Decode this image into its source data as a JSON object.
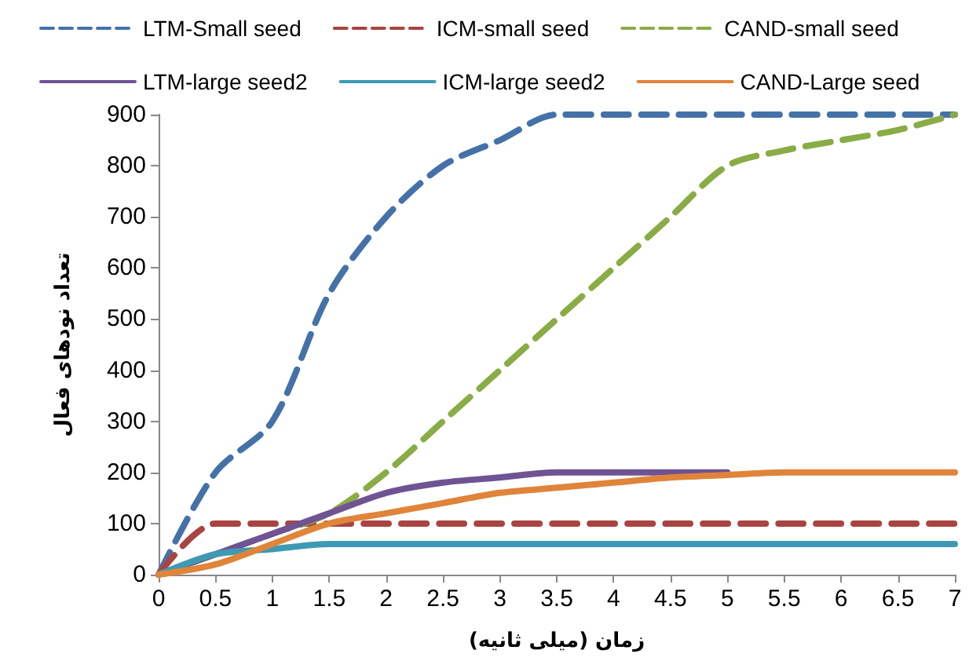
{
  "chart_data": {
    "type": "line",
    "xlabel": "زمان (میلی ثانیه)",
    "ylabel": "تعداد نودهای فعال",
    "categories": [
      "0",
      "0.5",
      "1",
      "1.5",
      "2",
      "2.5",
      "3",
      "3.5",
      "4",
      "4.5",
      "5",
      "5.5",
      "6",
      "6.5",
      "7"
    ],
    "ylim": [
      0,
      900
    ],
    "yticks": [
      0,
      100,
      200,
      300,
      400,
      500,
      600,
      700,
      800,
      900
    ],
    "grid": false,
    "legend": "top",
    "marker": "none",
    "series": [
      {
        "name": "LTM-Small seed",
        "color": "#4472a8",
        "line_style": "dashed",
        "values": [
          0,
          200,
          300,
          550,
          700,
          800,
          850,
          900,
          900,
          900,
          900,
          900,
          900,
          900,
          900
        ]
      },
      {
        "name": "ICM-small seed",
        "color": "#a94442",
        "line_style": "dashed",
        "values": [
          0,
          100,
          100,
          100,
          100,
          100,
          100,
          100,
          100,
          100,
          100,
          100,
          100,
          100,
          100
        ]
      },
      {
        "name": "CAND-small seed",
        "color": "#8aac46",
        "line_style": "dashed",
        "values": [
          0,
          40,
          80,
          120,
          200,
          300,
          400,
          500,
          600,
          700,
          800,
          830,
          850,
          870,
          900
        ]
      },
      {
        "name": "LTM-large seed2",
        "color": "#6f5393",
        "line_style": "solid",
        "values": [
          0,
          40,
          80,
          120,
          160,
          180,
          190,
          200,
          200,
          200,
          200,
          null,
          null,
          null,
          null
        ]
      },
      {
        "name": "ICM-large seed2",
        "color": "#3e9ab4",
        "line_style": "solid",
        "values": [
          0,
          40,
          50,
          60,
          60,
          60,
          60,
          60,
          60,
          60,
          60,
          60,
          60,
          60,
          60
        ]
      },
      {
        "name": "CAND-Large seed",
        "color": "#e0843a",
        "line_style": "solid",
        "values": [
          0,
          20,
          60,
          100,
          120,
          140,
          160,
          170,
          180,
          190,
          195,
          200,
          200,
          200,
          200
        ]
      }
    ]
  }
}
